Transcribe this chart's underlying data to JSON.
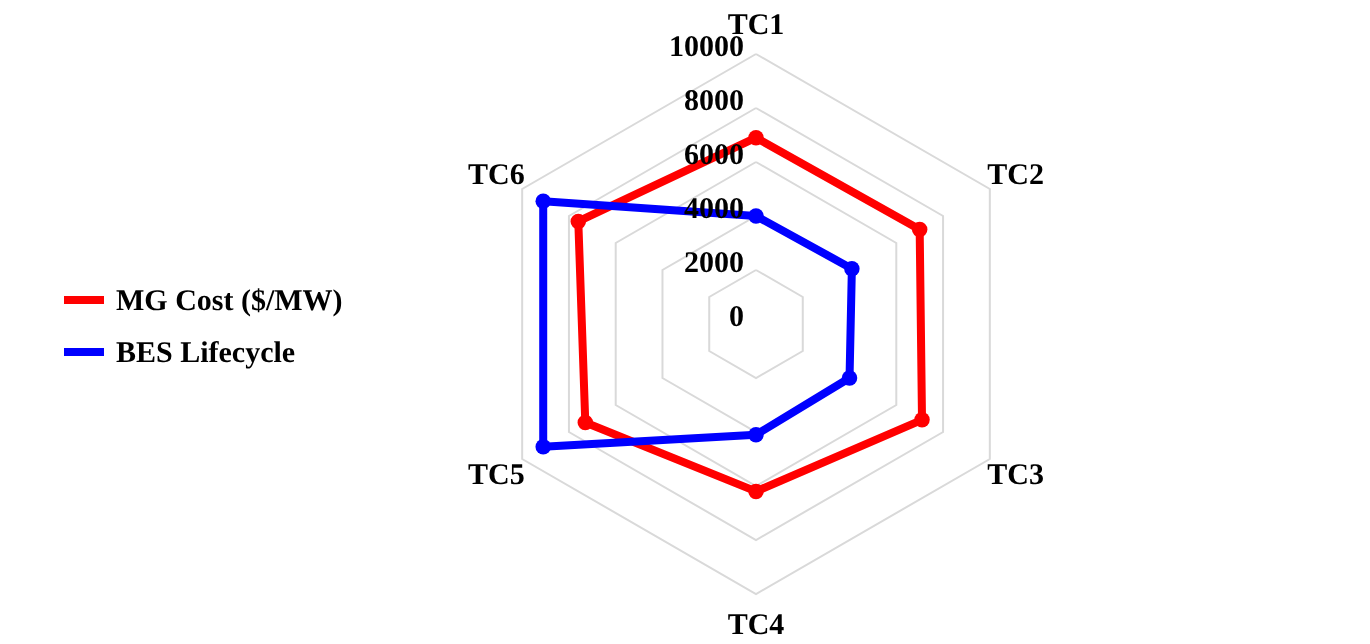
{
  "chart_data": {
    "type": "radar",
    "categories": [
      "TC1",
      "TC2",
      "TC3",
      "TC4",
      "TC5",
      "TC6"
    ],
    "series": [
      {
        "name": "MG Cost ($/MW)",
        "color": "#ff0000",
        "values": [
          6900,
          7000,
          7100,
          6200,
          7300,
          7600
        ]
      },
      {
        "name": "BES Lifecycle",
        "color": "#0000ff",
        "values": [
          4000,
          4100,
          4000,
          4100,
          9100,
          9100
        ]
      }
    ],
    "ylim": [
      0,
      10000
    ],
    "yticks": [
      0,
      2000,
      4000,
      6000,
      8000,
      10000
    ],
    "grid": true,
    "legend": "left",
    "marker": "circle",
    "line_style": "solid"
  }
}
